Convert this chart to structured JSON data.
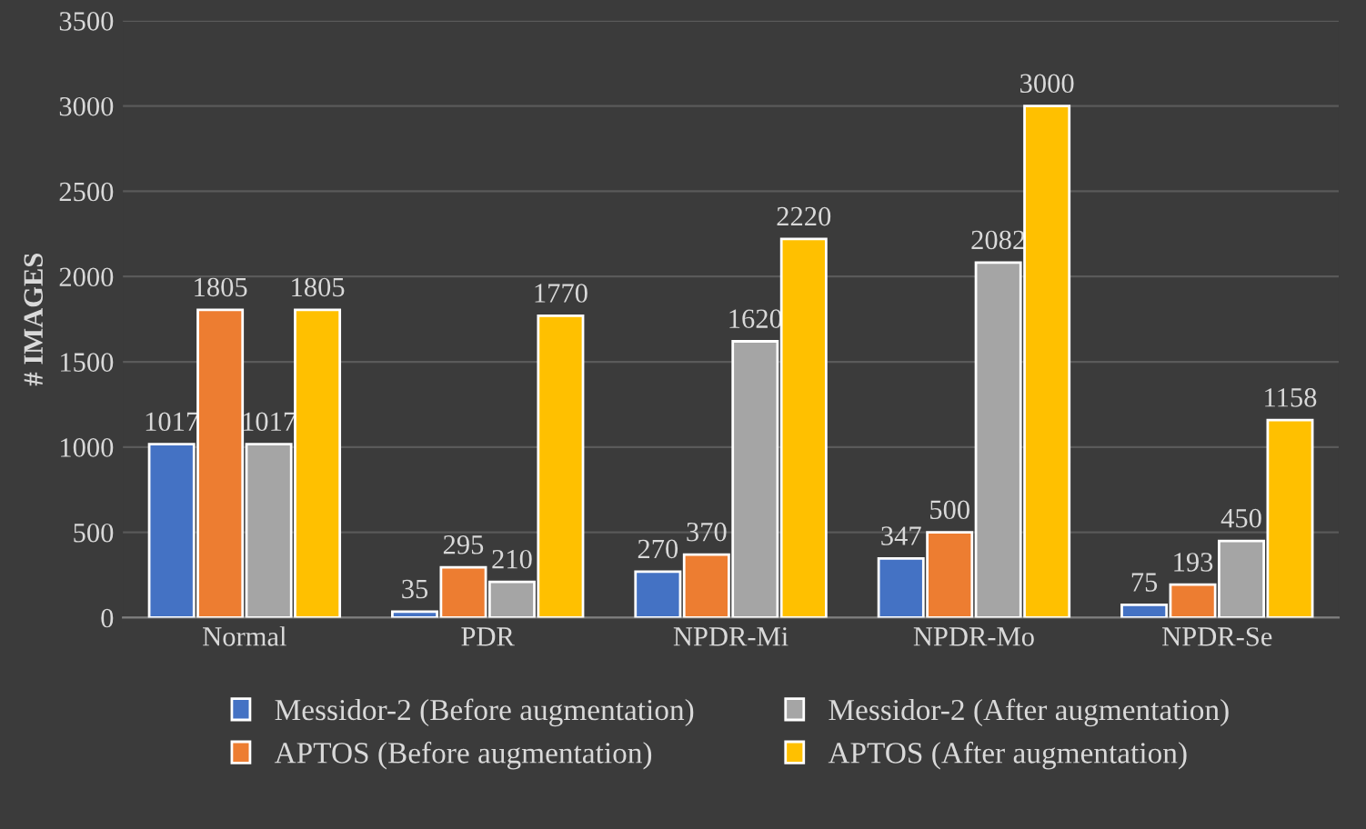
{
  "chart_data": {
    "type": "bar",
    "ylabel": "# IMAGES",
    "categories": [
      "Normal",
      "PDR",
      "NPDR-Mi",
      "NPDR-Mo",
      "NPDR-Se"
    ],
    "series": [
      {
        "name": "Messidor-2 (Before augmentation)",
        "color": "#4472c4",
        "values": [
          1017,
          35,
          270,
          347,
          75
        ]
      },
      {
        "name": "APTOS (Before augmentation)",
        "color": "#ed7d31",
        "values": [
          1805,
          295,
          370,
          500,
          193
        ]
      },
      {
        "name": "Messidor-2 (After augmentation)",
        "color": "#a5a5a5",
        "values": [
          1017,
          210,
          1620,
          2082,
          450
        ]
      },
      {
        "name": "APTOS (After augmentation)",
        "color": "#ffc000",
        "values": [
          1805,
          1770,
          2220,
          3000,
          1158
        ]
      }
    ],
    "ylim": [
      0,
      3500
    ],
    "yticks": [
      0,
      500,
      1000,
      1500,
      2000,
      2500,
      3000,
      3500
    ],
    "grid": "y",
    "legend": "bottom",
    "data_labels": true
  }
}
